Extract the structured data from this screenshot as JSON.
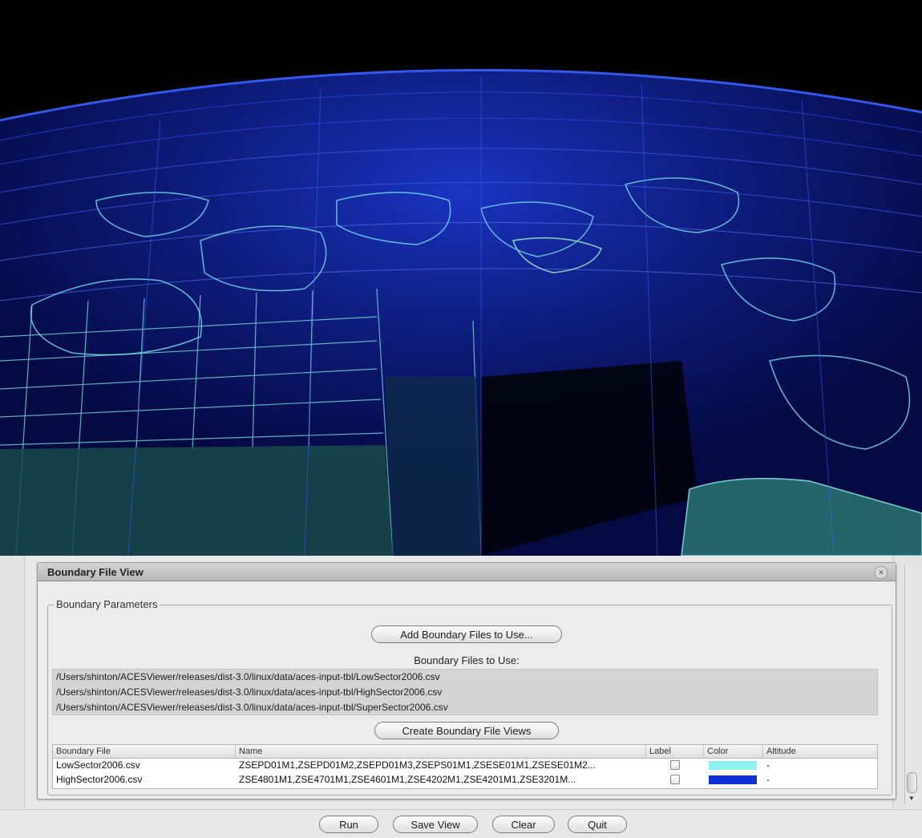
{
  "visualization": {
    "background_color": "#000000",
    "line_color_dark": "#1d2ad8",
    "line_color_light": "#7fe8e0"
  },
  "boundary_file_view": {
    "title": "Boundary File View",
    "close_icon": "close-icon",
    "group_label": "Boundary Parameters",
    "add_button_label": "Add Boundary Files to Use...",
    "files_label": "Boundary Files to Use:",
    "files": [
      "/Users/shinton/ACESViewer/releases/dist-3.0/linux/data/aces-input-tbl/LowSector2006.csv",
      "/Users/shinton/ACESViewer/releases/dist-3.0/linux/data/aces-input-tbl/HighSector2006.csv",
      "/Users/shinton/ACESViewer/releases/dist-3.0/linux/data/aces-input-tbl/SuperSector2006.csv"
    ],
    "create_button_label": "Create Boundary File Views",
    "table": {
      "columns": [
        "Boundary File",
        "Name",
        "Label",
        "Color",
        "Altitude"
      ],
      "rows": [
        {
          "file": "LowSector2006.csv",
          "name": "ZSEPD01M1,ZSEPD01M2,ZSEPD01M3,ZSEPS01M1,ZSESE01M1,ZSESE01M2...",
          "label_checked": false,
          "color": "#8ff0f0",
          "altitude": "-"
        },
        {
          "file": "HighSector2006.csv",
          "name": "ZSE4801M1,ZSE4701M1,ZSE4601M1,ZSE4202M1,ZSE4201M1,ZSE3201M...",
          "label_checked": false,
          "color": "#0f2fd8",
          "altitude": "-"
        }
      ]
    }
  },
  "buttons": {
    "run": "Run",
    "save_view": "Save View",
    "clear": "Clear",
    "quit": "Quit"
  }
}
